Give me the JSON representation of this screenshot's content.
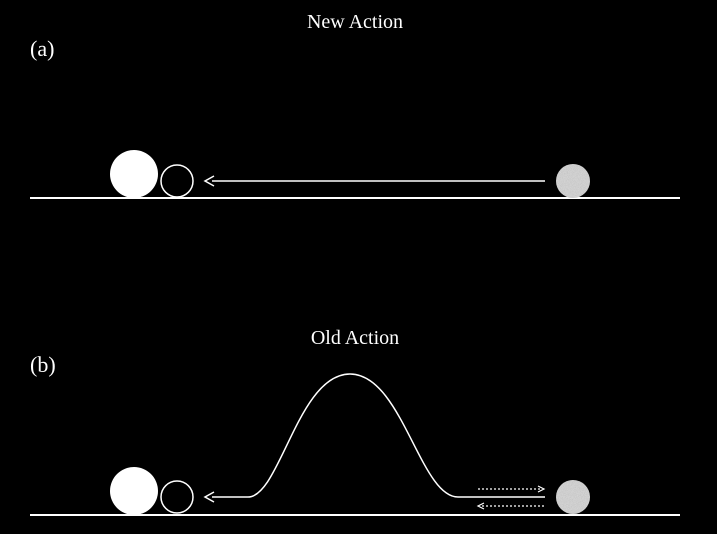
{
  "panel_a": {
    "label": "(a)",
    "title": "New Action"
  },
  "panel_b": {
    "label": "(b)",
    "title": "Old Action"
  },
  "colors": {
    "background": "#000000",
    "foreground": "#ffffff",
    "grainy_ball": "#d9d9d9"
  }
}
